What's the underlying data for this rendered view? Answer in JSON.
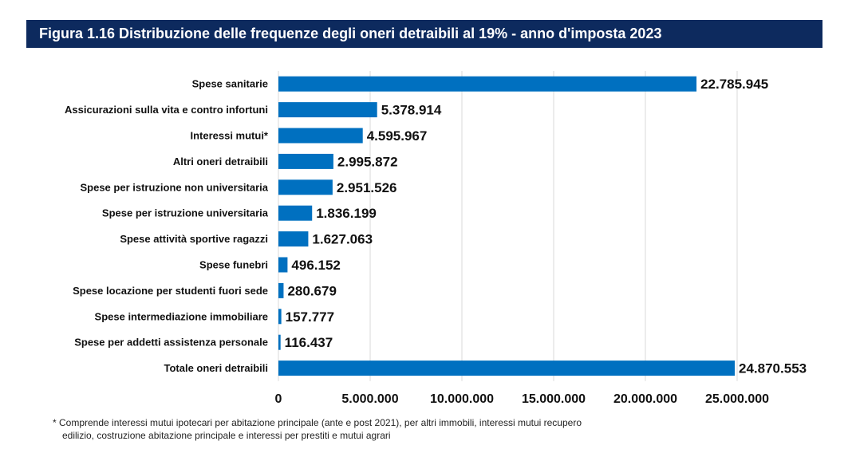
{
  "title": "Figura 1.16 Distribuzione delle frequenze degli oneri detraibili al 19% - anno d'imposta 2023",
  "chart_data": {
    "type": "bar",
    "orientation": "horizontal",
    "categories": [
      "Spese sanitarie",
      "Assicurazioni sulla vita e contro infortuni",
      "Interessi mutui*",
      "Altri oneri detraibili",
      "Spese per istruzione non universitaria",
      "Spese per istruzione universitaria",
      "Spese attività sportive ragazzi",
      "Spese funebri",
      "Spese locazione per studenti fuori sede",
      "Spese intermediazione immobiliare",
      "Spese per addetti assistenza personale",
      "Totale oneri detraibili"
    ],
    "values": [
      22785945,
      5378914,
      4595967,
      2995872,
      2951526,
      1836199,
      1627063,
      496152,
      280679,
      157777,
      116437,
      24870553
    ],
    "value_labels": [
      "22.785.945",
      "5.378.914",
      "4.595.967",
      "2.995.872",
      "2.951.526",
      "1.836.199",
      "1.627.063",
      "496.152",
      "280.679",
      "157.777",
      "116.437",
      "24.870.553"
    ],
    "xlim": [
      0,
      25000000
    ],
    "xticks": [
      0,
      5000000,
      10000000,
      15000000,
      20000000,
      25000000
    ],
    "xtick_labels": [
      "0",
      "5.000.000",
      "10.000.000",
      "15.000.000",
      "20.000.000",
      "25.000.000"
    ],
    "grid": "vertical",
    "bar_color": "#0070c0"
  },
  "footnote": {
    "line1": "* Comprende interessi mutui ipotecari per abitazione principale (ante e post 2021), per altri immobili, interessi mutui recupero",
    "line2": "edilizio, costruzione abitazione principale e interessi per prestiti e mutui agrari"
  }
}
